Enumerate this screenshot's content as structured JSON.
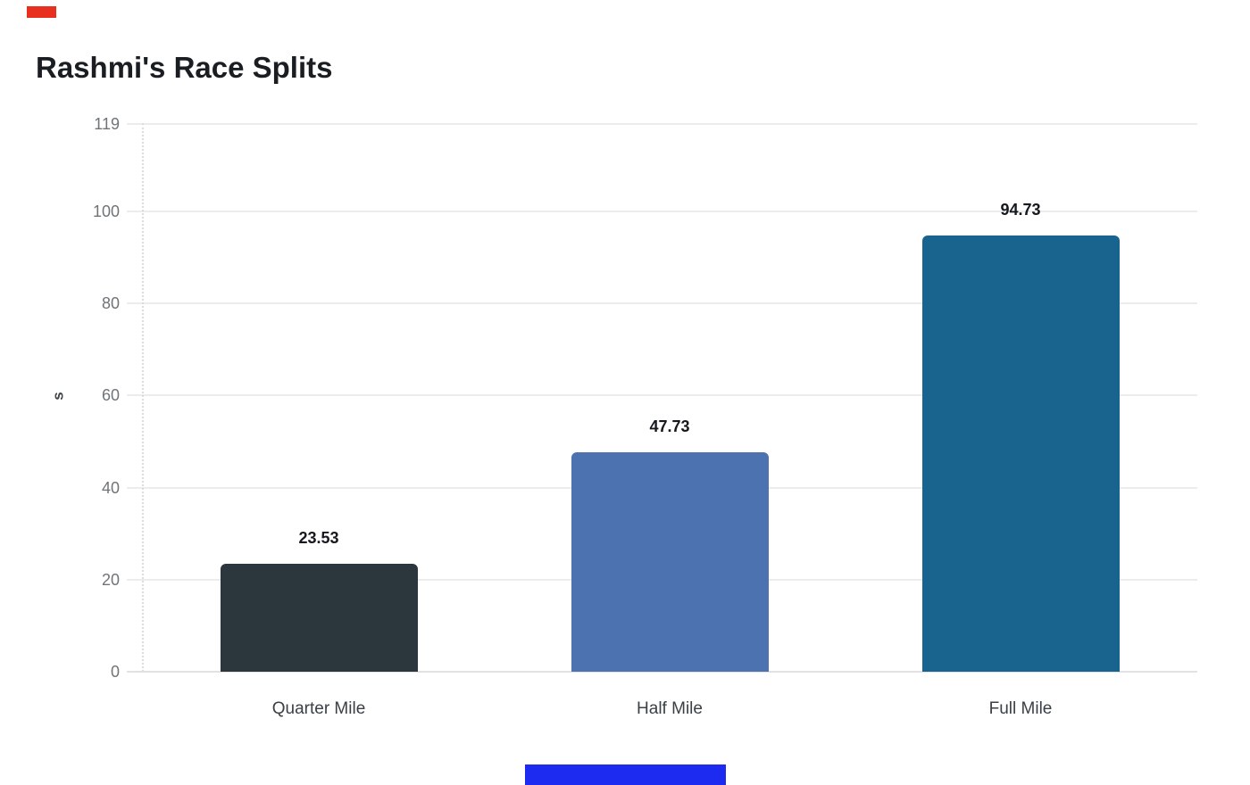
{
  "chart_data": {
    "type": "bar",
    "title": "Rashmi's Race Splits",
    "categories": [
      "Quarter Mile",
      "Half Mile",
      "Full Mile"
    ],
    "values": [
      23.53,
      47.73,
      94.73
    ],
    "value_labels": [
      "23.53",
      "47.73",
      "94.73"
    ],
    "bar_colors": [
      "#2c373d",
      "#4c73af",
      "#18648e"
    ],
    "xlabel": "",
    "ylabel": "s",
    "ylim": [
      0,
      119
    ],
    "yticks": [
      0,
      20,
      40,
      60,
      80,
      100,
      119
    ],
    "grid": true,
    "legend": false,
    "background": "#ffffff",
    "gridline_color": "#ececec",
    "baseline_color": "#e2e2e2",
    "tick_label_color": "#6f7479",
    "category_label_color": "#3a4046",
    "value_label_color": "#15181c",
    "title_color": "#1a1e22"
  },
  "markers": {
    "top_left_red": {
      "color": "#e8301f"
    },
    "bottom_center_blue": {
      "color": "#1d2bf0"
    }
  }
}
